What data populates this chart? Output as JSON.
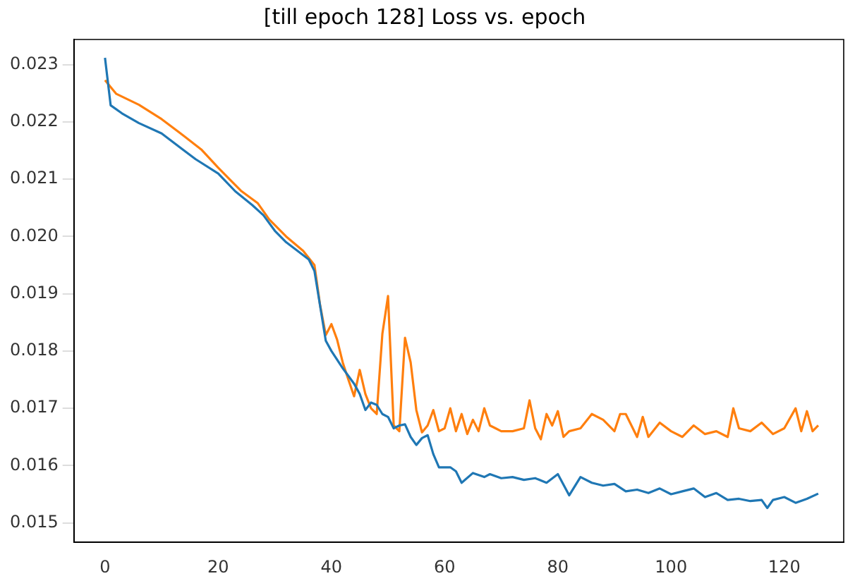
{
  "chart_data": {
    "type": "line",
    "title": "[till epoch 128] Loss vs. epoch",
    "xlim": [
      -5.5,
      130.5
    ],
    "xticks": [
      0,
      20,
      40,
      60,
      80,
      100,
      120
    ],
    "ylim": [
      0.01466,
      0.02344
    ],
    "yticks": [
      {
        "value": 0.015,
        "label": "0.015"
      },
      {
        "value": 0.016,
        "label": "0.016"
      },
      {
        "value": 0.017,
        "label": "0.017"
      },
      {
        "value": 0.018,
        "label": "0.018"
      },
      {
        "value": 0.019,
        "label": "0.019"
      },
      {
        "value": 0.02,
        "label": "0.020"
      },
      {
        "value": 0.021,
        "label": "0.021"
      },
      {
        "value": 0.022,
        "label": "0.022"
      },
      {
        "value": 0.023,
        "label": "0.023"
      }
    ],
    "grid": false,
    "legend": false,
    "marker": "none",
    "line_style": "solid",
    "series": [
      {
        "color": "#1f77b4",
        "x": [
          0,
          1,
          3,
          6,
          10,
          16,
          20,
          23,
          26,
          28,
          30,
          32,
          34,
          36,
          37,
          39,
          40,
          42,
          44,
          45,
          46,
          47,
          48,
          49,
          50,
          51,
          52,
          53,
          54,
          55,
          56,
          57,
          58,
          59,
          61,
          62,
          63,
          65,
          67,
          68,
          70,
          72,
          74,
          76,
          78,
          80,
          82,
          84,
          86,
          88,
          90,
          92,
          94,
          96,
          98,
          100,
          102,
          104,
          106,
          108,
          110,
          112,
          114,
          116,
          117,
          118,
          120,
          122,
          124,
          126
        ],
        "values": [
          0.02312,
          0.02229,
          0.02215,
          0.02198,
          0.0218,
          0.02135,
          0.0211,
          0.02079,
          0.02055,
          0.02037,
          0.0201,
          0.0199,
          0.01975,
          0.0196,
          0.0194,
          0.01818,
          0.018,
          0.0177,
          0.01743,
          0.01725,
          0.01697,
          0.0171,
          0.01706,
          0.0169,
          0.01685,
          0.01665,
          0.0167,
          0.01672,
          0.0165,
          0.01636,
          0.01648,
          0.01653,
          0.0162,
          0.01597,
          0.01597,
          0.0159,
          0.0157,
          0.01587,
          0.0158,
          0.01585,
          0.01578,
          0.0158,
          0.01575,
          0.01578,
          0.0157,
          0.01585,
          0.01548,
          0.0158,
          0.0157,
          0.01565,
          0.01568,
          0.01555,
          0.01558,
          0.01552,
          0.0156,
          0.0155,
          0.01555,
          0.0156,
          0.01545,
          0.01552,
          0.0154,
          0.01542,
          0.01538,
          0.0154,
          0.01526,
          0.0154,
          0.01545,
          0.01535,
          0.01542,
          0.01551
        ]
      },
      {
        "color": "#ff7f0e",
        "x": [
          0,
          2,
          6,
          10,
          14,
          17,
          20,
          24,
          27,
          29,
          32,
          35,
          37,
          38,
          39,
          40,
          41,
          42,
          43,
          44,
          45,
          46,
          47,
          48,
          49,
          50,
          51,
          52,
          53,
          54,
          55,
          56,
          57,
          58,
          59,
          60,
          61,
          62,
          63,
          64,
          65,
          66,
          67,
          68,
          69,
          70,
          72,
          74,
          75,
          76,
          77,
          78,
          79,
          80,
          81,
          82,
          84,
          86,
          88,
          90,
          91,
          92,
          94,
          95,
          96,
          98,
          100,
          102,
          104,
          106,
          108,
          110,
          111,
          112,
          114,
          116,
          118,
          120,
          122,
          123,
          124,
          125,
          126
        ],
        "values": [
          0.02273,
          0.02249,
          0.0223,
          0.02205,
          0.02175,
          0.02152,
          0.0212,
          0.0208,
          0.02058,
          0.0203,
          0.02,
          0.01975,
          0.0195,
          0.0188,
          0.01828,
          0.01847,
          0.0182,
          0.0178,
          0.0175,
          0.01721,
          0.01767,
          0.01725,
          0.017,
          0.0169,
          0.0183,
          0.01896,
          0.0167,
          0.0166,
          0.01823,
          0.0178,
          0.01697,
          0.01658,
          0.0167,
          0.01697,
          0.0166,
          0.01665,
          0.017,
          0.0166,
          0.0169,
          0.01655,
          0.0168,
          0.0166,
          0.017,
          0.0167,
          0.01665,
          0.0166,
          0.0166,
          0.01665,
          0.01714,
          0.01665,
          0.01646,
          0.0169,
          0.0167,
          0.01695,
          0.0165,
          0.0166,
          0.01665,
          0.0169,
          0.0168,
          0.0166,
          0.0169,
          0.0169,
          0.0165,
          0.01685,
          0.0165,
          0.01675,
          0.0166,
          0.0165,
          0.0167,
          0.01655,
          0.0166,
          0.0165,
          0.017,
          0.01665,
          0.0166,
          0.01675,
          0.01655,
          0.01665,
          0.017,
          0.0166,
          0.01695,
          0.0166,
          0.0167
        ]
      }
    ]
  }
}
